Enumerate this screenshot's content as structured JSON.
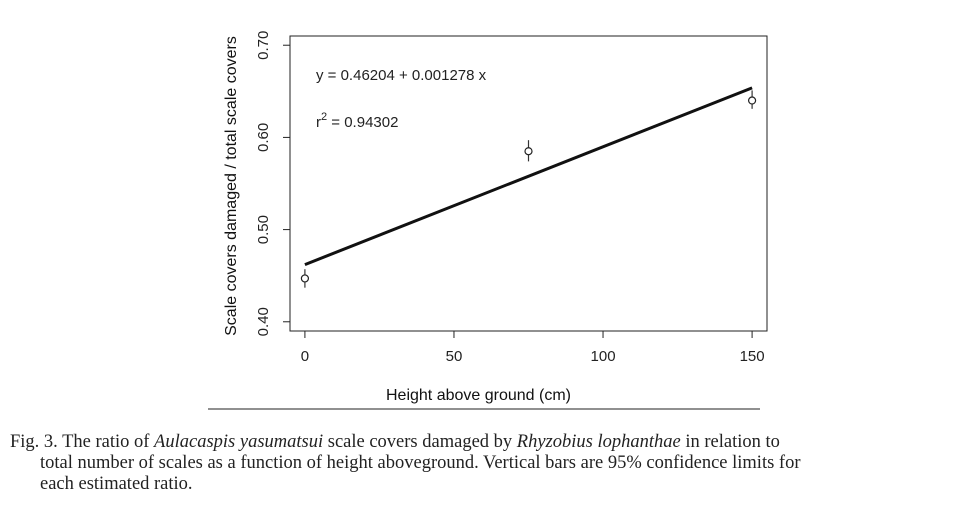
{
  "chart_data": {
    "type": "scatter",
    "xlabel": "Height above ground (cm)",
    "ylabel": "Scale covers damaged / total scale covers",
    "xlim": [
      -5,
      155
    ],
    "ylim": [
      0.39,
      0.71
    ],
    "x_ticks": [
      0,
      50,
      100,
      150
    ],
    "y_ticks": [
      0.4,
      0.5,
      0.6,
      0.7
    ],
    "x_tick_labels": [
      "0",
      "50",
      "100",
      "150"
    ],
    "y_tick_labels": [
      "0.40",
      "0.50",
      "0.60",
      "0.70"
    ],
    "points": [
      {
        "x": 0,
        "y": 0.447,
        "ci_low": 0.437,
        "ci_high": 0.457
      },
      {
        "x": 75,
        "y": 0.585,
        "ci_low": 0.574,
        "ci_high": 0.597
      },
      {
        "x": 150,
        "y": 0.64,
        "ci_low": 0.631,
        "ci_high": 0.651
      }
    ],
    "fit": {
      "intercept": 0.46204,
      "slope": 0.001278,
      "x_range": [
        0,
        150
      ]
    },
    "annotations": {
      "equation": "y = 0.46204 + 0.001278 x",
      "r2_base": "r",
      "r2_sup": "2",
      "r2_value": " = 0.94302"
    },
    "grid": false
  },
  "caption": {
    "line1_pre": "Fig. 3. The ratio of ",
    "line1_species1": "Aulacaspis yasumatsui",
    "line1_mid": " scale covers damaged by ",
    "line1_species2": "Rhyzobius lophanthae",
    "line1_post": " in relation to",
    "line2": "total number of scales as a function of height aboveground. Vertical bars are 95% confidence limits for",
    "line3": "each estimated ratio."
  }
}
